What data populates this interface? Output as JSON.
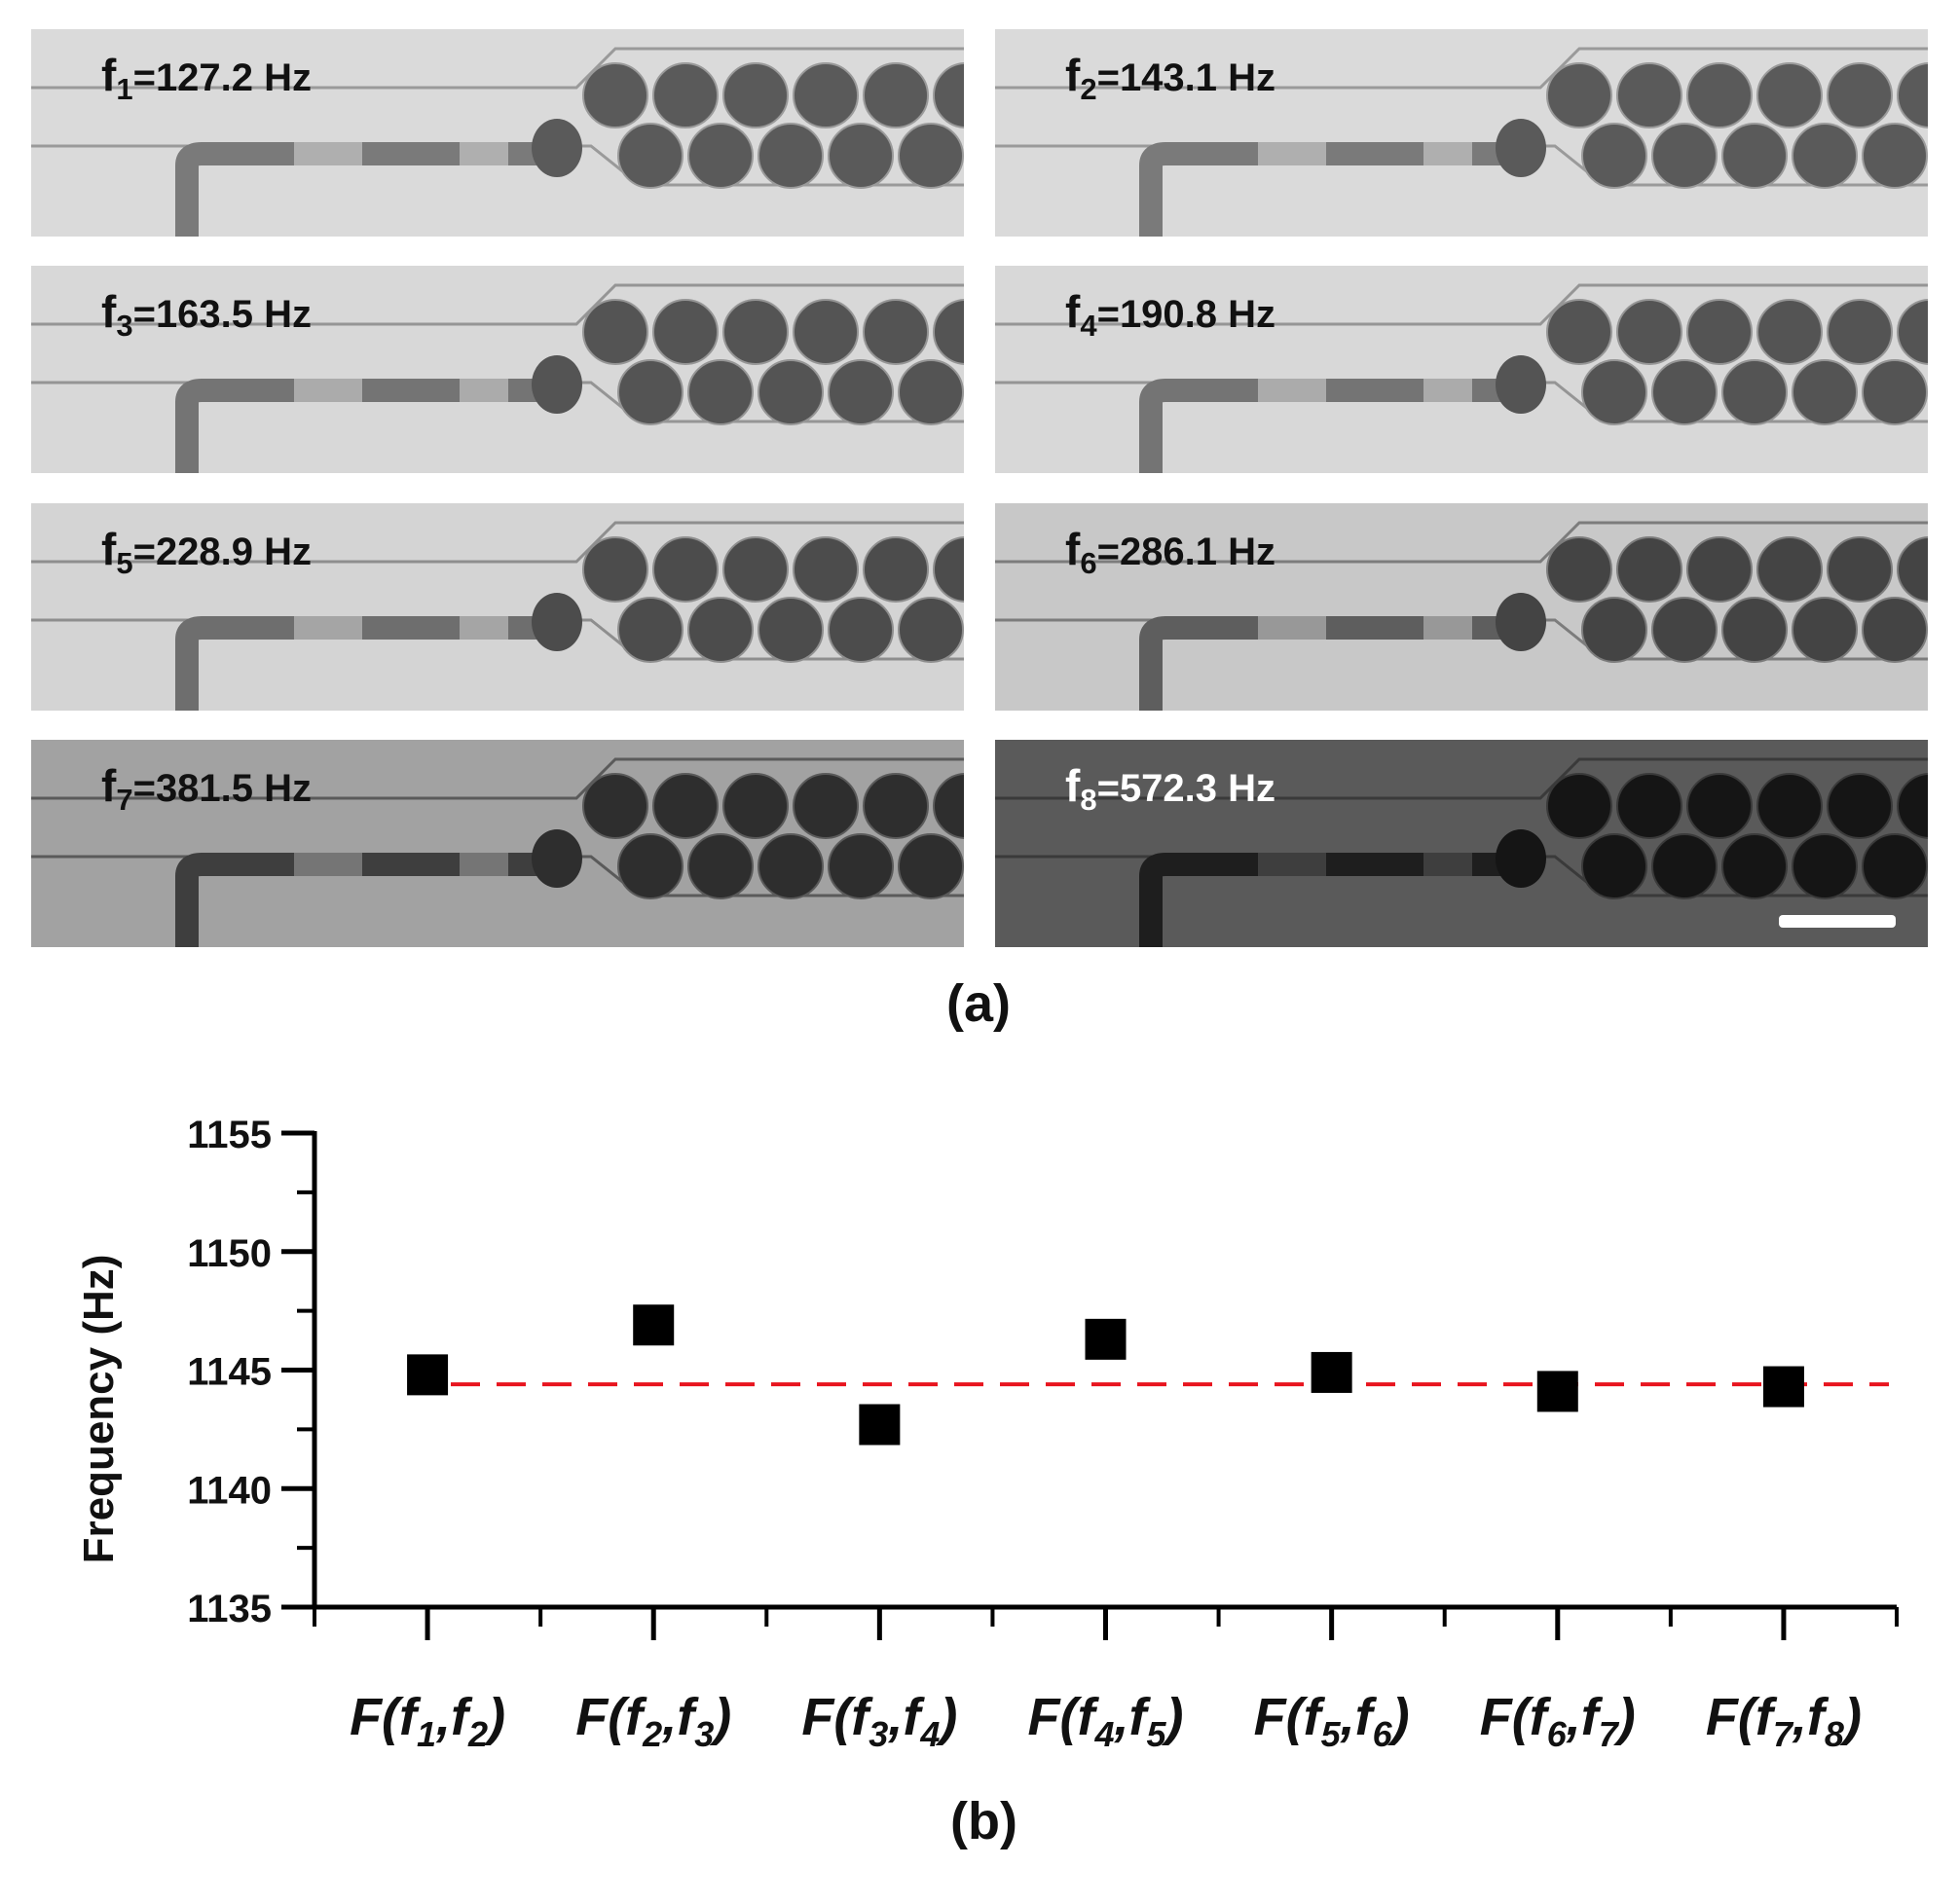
{
  "panels": [
    {
      "var": "f",
      "sub": "1",
      "value": "=127.2 Hz"
    },
    {
      "var": "f",
      "sub": "2",
      "value": "=143.1 Hz"
    },
    {
      "var": "f",
      "sub": "3",
      "value": "=163.5 Hz"
    },
    {
      "var": "f",
      "sub": "4",
      "value": "=190.8 Hz"
    },
    {
      "var": "f",
      "sub": "5",
      "value": "=228.9 Hz"
    },
    {
      "var": "f",
      "sub": "6",
      "value": "=286.1 Hz"
    },
    {
      "var": "f",
      "sub": "7",
      "value": "=381.5 Hz"
    },
    {
      "var": "f",
      "sub": "8",
      "value": "=572.3 Hz"
    }
  ],
  "caption_a": "(a)",
  "caption_b": "(b)",
  "colors": {
    "points": "#000000",
    "reference_line": "#e8141e"
  },
  "chart_data": {
    "type": "scatter",
    "ylabel": "Frequency (Hz)",
    "xlabel": "",
    "ylim": [
      1135,
      1155
    ],
    "yticks": [
      1135,
      1140,
      1145,
      1150,
      1155
    ],
    "categories": [
      {
        "pre": "F(f",
        "a": "1",
        "mid": ",f",
        "b": "2",
        "post": ")"
      },
      {
        "pre": "F(f",
        "a": "2",
        "mid": ",f",
        "b": "3",
        "post": ")"
      },
      {
        "pre": "F(f",
        "a": "3",
        "mid": ",f",
        "b": "4",
        "post": ")"
      },
      {
        "pre": "F(f",
        "a": "4",
        "mid": ",f",
        "b": "5",
        "post": ")"
      },
      {
        "pre": "F(f",
        "a": "5",
        "mid": ",f",
        "b": "6",
        "post": ")"
      },
      {
        "pre": "F(f",
        "a": "6",
        "mid": ",f",
        "b": "7",
        "post": ")"
      },
      {
        "pre": "F(f",
        "a": "7",
        "mid": ",f",
        "b": "8",
        "post": ")"
      }
    ],
    "values": [
      1144.8,
      1146.9,
      1142.7,
      1146.3,
      1144.9,
      1144.1,
      1144.3
    ],
    "reference_line": 1144.4,
    "marker": "square",
    "grid": false
  }
}
